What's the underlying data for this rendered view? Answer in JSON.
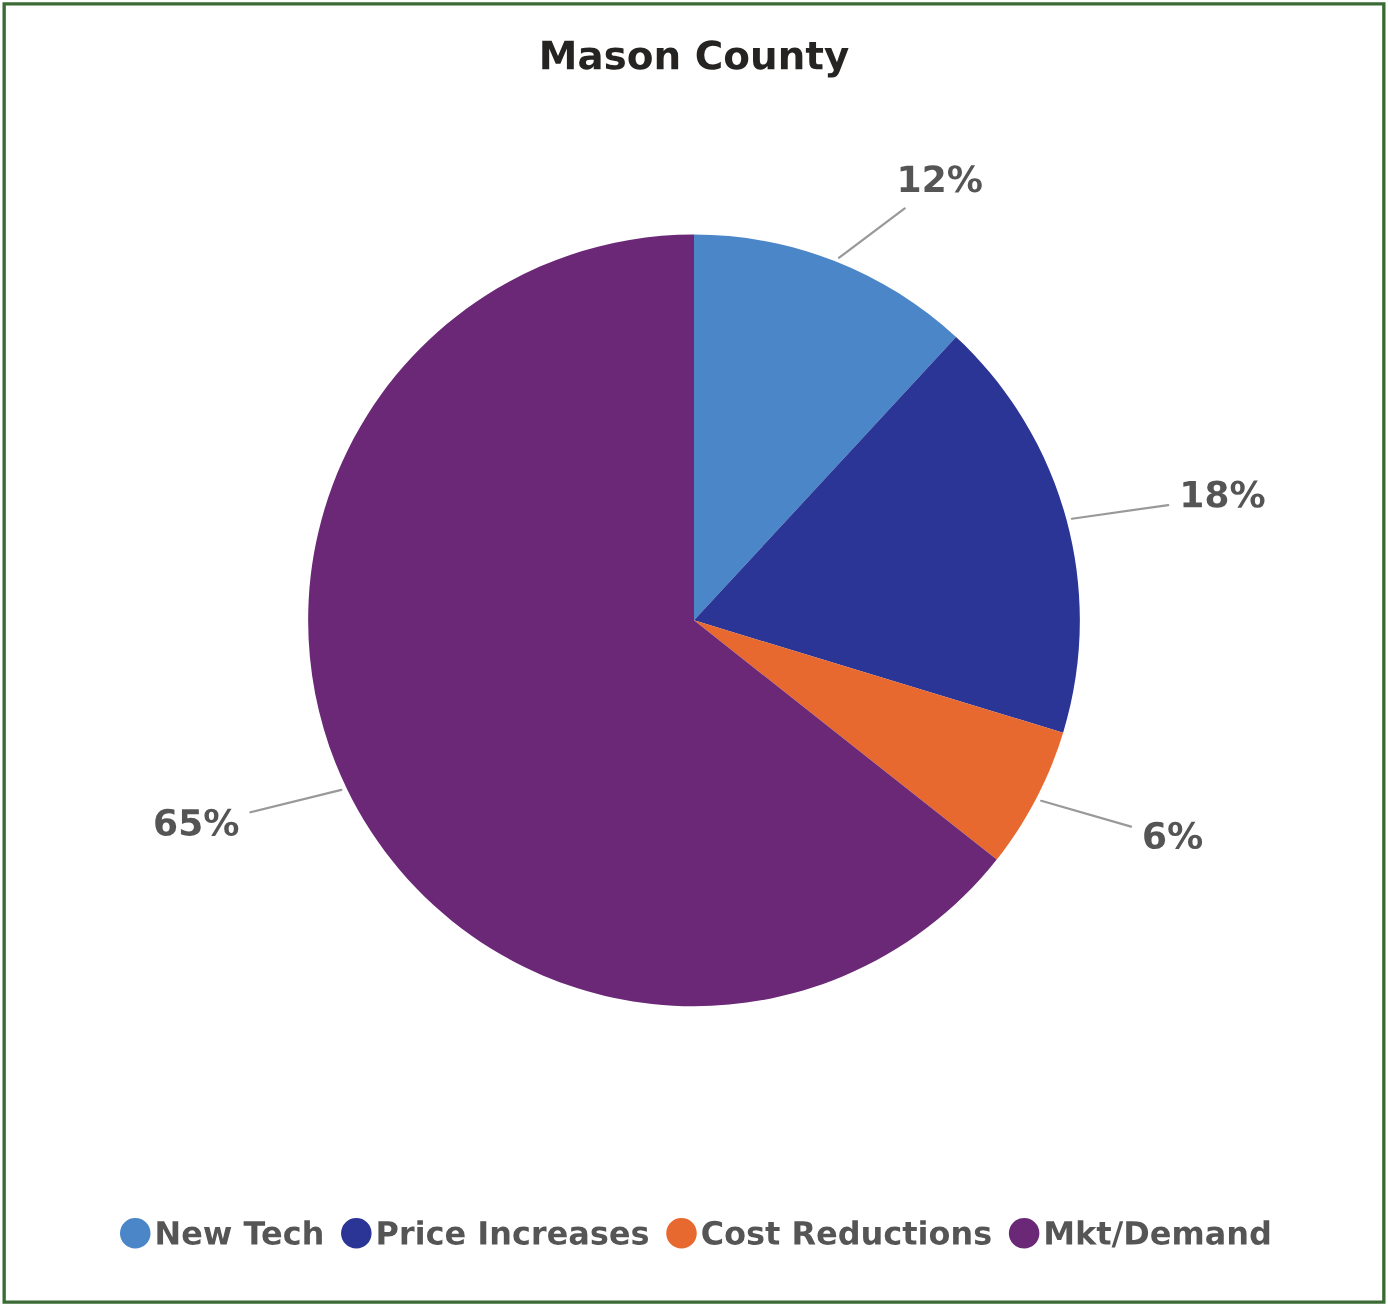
{
  "chart_data": {
    "type": "pie",
    "title": "Mason County",
    "categories": [
      "New Tech",
      "Price Increases",
      "Cost Reductions",
      "Mkt/Demand"
    ],
    "values": [
      12,
      18,
      6,
      65
    ],
    "colors": [
      "#4a86c8",
      "#2b3595",
      "#e8692f",
      "#6a2877"
    ],
    "value_labels": [
      "12%",
      "18%",
      "6%",
      "65%"
    ],
    "legend": "bottom"
  }
}
